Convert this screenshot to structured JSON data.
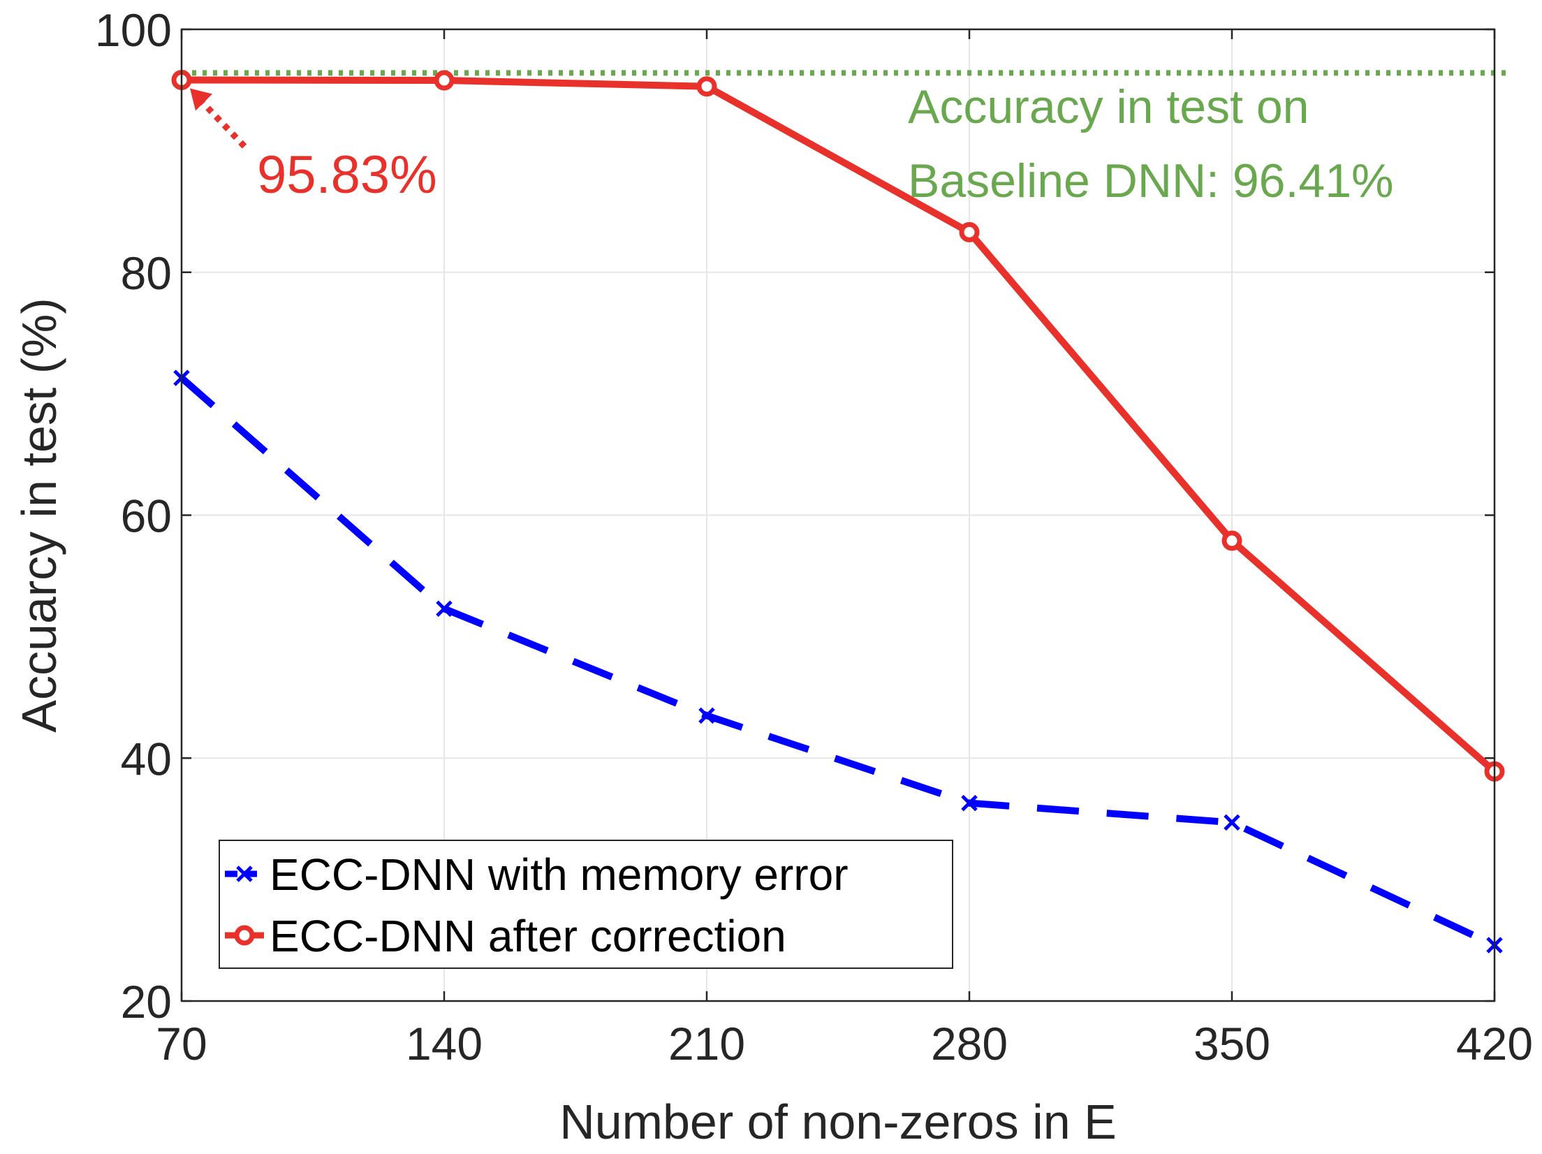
{
  "chart_data": {
    "type": "line",
    "xlabel": "Number of non-zeros in E",
    "ylabel": "Accuarcy in test (%)",
    "xlim": [
      70,
      420
    ],
    "ylim": [
      20,
      100
    ],
    "x": [
      70,
      140,
      210,
      280,
      350,
      420
    ],
    "xticks": [
      "70",
      "140",
      "210",
      "280",
      "350",
      "420"
    ],
    "yticks": [
      "20",
      "40",
      "60",
      "80",
      "100"
    ],
    "grid": true,
    "legend_position": "bottom-left",
    "series": [
      {
        "name": "ECC-DNN with memory error",
        "values": [
          71.3,
          52.3,
          43.5,
          36.3,
          34.7,
          24.6
        ],
        "color": "#0000FF",
        "line_style": "dashed",
        "marker": "x"
      },
      {
        "name": "ECC-DNN after correction",
        "values": [
          95.83,
          95.8,
          95.3,
          83.3,
          57.9,
          38.9
        ],
        "color": "#E8312A",
        "line_style": "solid",
        "marker": "o"
      }
    ],
    "baseline": {
      "value": 96.41,
      "color": "#6AA84F",
      "line_style": "dotted"
    },
    "annotations": [
      {
        "text": "95.83%",
        "color": "#E8312A",
        "x": 70,
        "y": 95.83
      },
      {
        "text_lines": [
          "Accuracy in test on",
          "Baseline DNN: 96.41%"
        ],
        "color": "#6AA84F"
      }
    ]
  }
}
